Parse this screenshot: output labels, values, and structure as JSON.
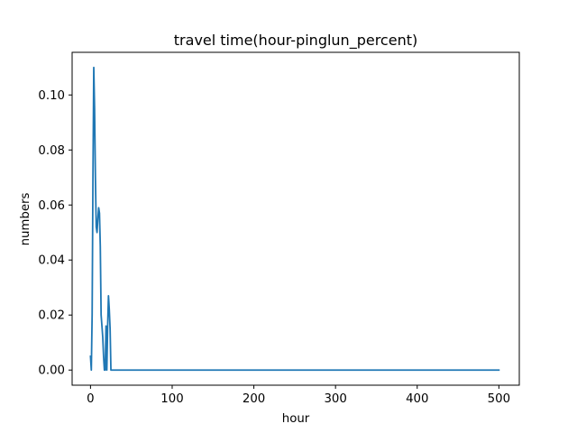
{
  "chart_data": {
    "type": "line",
    "title": "travel time(hour-pinglun_percent)",
    "xlabel": "hour",
    "ylabel": "numbers",
    "xlim": [
      -22.5,
      525
    ],
    "ylim": [
      -0.0055,
      0.1155
    ],
    "xticks": [
      0,
      100,
      200,
      300,
      400,
      500
    ],
    "yticks": [
      0.0,
      0.02,
      0.04,
      0.06,
      0.08,
      0.1
    ],
    "xtick_labels": [
      "0",
      "100",
      "200",
      "300",
      "400",
      "500"
    ],
    "ytick_labels": [
      "0.00",
      "0.02",
      "0.04",
      "0.06",
      "0.08",
      "0.10"
    ],
    "grid": false,
    "series": [
      {
        "color": "#1f77b4",
        "x": [
          0,
          1,
          2,
          3,
          4,
          5,
          6,
          7,
          8,
          9,
          10,
          11,
          12,
          13,
          14,
          15,
          16,
          17,
          18,
          19,
          20,
          21,
          22,
          23,
          24,
          25,
          26,
          27,
          28,
          29,
          30,
          31,
          32,
          40,
          60,
          100,
          200,
          300,
          400,
          500
        ],
        "y": [
          0.005,
          0.0,
          0.02,
          0.07,
          0.11,
          0.095,
          0.07,
          0.052,
          0.05,
          0.055,
          0.059,
          0.057,
          0.045,
          0.02,
          0.016,
          0.012,
          0.005,
          0.0,
          0.0,
          0.016,
          0.0,
          0.016,
          0.027,
          0.022,
          0.015,
          0.0,
          0.0,
          0.0,
          0.0,
          0.0,
          0.0,
          0.0,
          0.0,
          0.0,
          0.0,
          0.0,
          0.0,
          0.0,
          0.0,
          0.0
        ]
      }
    ]
  }
}
